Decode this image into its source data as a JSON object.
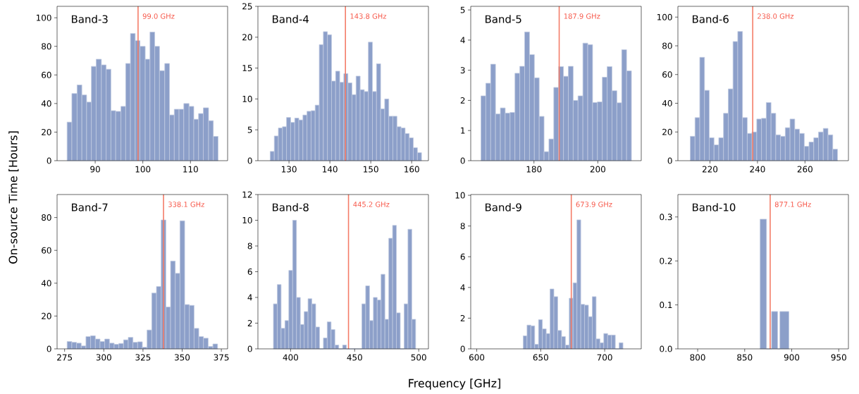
{
  "chart_data": [
    {
      "type": "histogram",
      "title": "Band-3",
      "ylabel": "On-source Time [Hours]",
      "color": "#8c9fc9",
      "bins": [
        84.1,
        85.1,
        86.2,
        87.2,
        88.2,
        89.2,
        90.2,
        91.3,
        92.3,
        93.3,
        94.3,
        95.4,
        96.4,
        97.4,
        98.4,
        99.4,
        100.5,
        101.5,
        102.5,
        103.5,
        104.6,
        105.6,
        106.6,
        107.6,
        108.6,
        109.7,
        110.7,
        111.7,
        112.7,
        113.8,
        114.8,
        115.8
      ],
      "values": [
        27,
        47,
        53,
        46,
        41,
        66,
        71,
        67,
        64,
        35,
        34.5,
        38,
        68,
        89,
        84,
        80,
        71,
        90,
        80,
        63,
        68,
        32,
        36,
        36,
        40,
        38,
        29,
        33,
        37,
        28,
        17
      ],
      "xlim": [
        82.0,
        117.8
      ],
      "ylim": [
        0,
        108
      ],
      "xticks": [
        90,
        100,
        110
      ],
      "yticks": [
        0,
        20,
        40,
        60,
        80,
        100
      ],
      "ref_lines": [
        {
          "axis": "x",
          "value": 99.0,
          "label": "99.0 GHz",
          "color": "#f47c68"
        }
      ]
    },
    {
      "type": "histogram",
      "title": "Band-4",
      "color": "#8c9fc9",
      "bins": [
        125.4,
        126.4,
        127.4,
        128.4,
        129.4,
        130.4,
        131.4,
        132.4,
        133.4,
        134.4,
        135.4,
        136.4,
        137.4,
        138.4,
        139.4,
        140.4,
        141.4,
        142.4,
        143.4,
        144.4,
        145.4,
        146.4,
        147.4,
        148.4,
        149.4,
        150.4,
        151.4,
        152.4,
        153.4,
        154.4,
        155.4,
        156.4,
        157.4,
        158.4,
        159.4,
        160.4,
        161.4,
        162.4
      ],
      "values": [
        1.5,
        4,
        5.3,
        5.5,
        7,
        6.2,
        6.9,
        6.6,
        7.4,
        8,
        8.1,
        9,
        18.8,
        20.9,
        20.4,
        12.9,
        14.5,
        12.7,
        14.1,
        12.6,
        10.7,
        13.7,
        11.5,
        11.2,
        19.2,
        11.2,
        15.7,
        8.4,
        10,
        7.2,
        7.2,
        5.5,
        5.3,
        4.4,
        3.7,
        2.1,
        1.3
      ],
      "xlim": [
        122.4,
        164.1
      ],
      "ylim": [
        0,
        25
      ],
      "xticks": [
        130,
        140,
        150,
        160
      ],
      "yticks": [
        0,
        5,
        10,
        15,
        20,
        25
      ],
      "ref_lines": [
        {
          "axis": "x",
          "value": 143.8,
          "label": "143.8 GHz",
          "color": "#f47c68"
        }
      ]
    },
    {
      "type": "histogram",
      "title": "Band-5",
      "color": "#8c9fc9",
      "bins": [
        163.4,
        164.92,
        166.44,
        167.96,
        169.48,
        171.0,
        172.52,
        174.04,
        175.56,
        177.08,
        178.6,
        180.12,
        181.64,
        183.16,
        184.68,
        186.2,
        187.72,
        189.24,
        190.76,
        192.28,
        193.8,
        195.32,
        196.84,
        198.36,
        199.88,
        201.4,
        202.92,
        204.44,
        205.96,
        207.48,
        209.0,
        210.52
      ],
      "values": [
        2.15,
        2.57,
        3.2,
        1.55,
        1.75,
        1.58,
        1.6,
        2.9,
        3.13,
        4.27,
        3.52,
        2.75,
        1.47,
        0.3,
        0.72,
        2.43,
        3.12,
        2.8,
        3.13,
        2.0,
        2.15,
        3.9,
        3.85,
        1.93,
        1.95,
        2.77,
        3.12,
        2.32,
        1.92,
        3.68,
        2.98
      ],
      "xlim": [
        160.2,
        213.6
      ],
      "ylim": [
        0,
        5.12
      ],
      "xticks": [
        180,
        200
      ],
      "yticks": [
        0,
        1,
        2,
        3,
        4,
        5
      ],
      "ref_lines": [
        {
          "axis": "x",
          "value": 187.9,
          "label": "187.9 GHz",
          "color": "#f47c68"
        }
      ]
    },
    {
      "type": "histogram",
      "title": "Band-6",
      "color": "#8c9fc9",
      "bins": [
        211.7,
        213.7,
        215.7,
        217.7,
        219.7,
        221.7,
        223.7,
        225.7,
        227.7,
        229.7,
        231.7,
        233.7,
        235.7,
        237.7,
        239.7,
        241.7,
        243.7,
        245.7,
        247.7,
        249.7,
        251.7,
        253.7,
        255.7,
        257.7,
        259.7,
        261.7,
        263.7,
        265.7,
        267.7,
        269.7,
        271.7,
        273.7
      ],
      "values": [
        17,
        30,
        72,
        49,
        16,
        11,
        16,
        33,
        50,
        83,
        90,
        30,
        19,
        20,
        29,
        29.5,
        40.5,
        33,
        18,
        17,
        23,
        29,
        22,
        19,
        10,
        13,
        16,
        20,
        22.5,
        18,
        8
      ],
      "xlim": [
        206.5,
        278.3
      ],
      "ylim": [
        0,
        107.5
      ],
      "xticks": [
        220,
        240,
        260
      ],
      "yticks": [
        0,
        20,
        40,
        60,
        80,
        100
      ],
      "ref_lines": [
        {
          "axis": "x",
          "value": 238.0,
          "label": "238.0 GHz",
          "color": "#f47c68"
        }
      ]
    },
    {
      "type": "histogram",
      "title": "Band-7",
      "color": "#8c9fc9",
      "bins": [
        276.6,
        279.6,
        282.6,
        285.6,
        288.6,
        291.6,
        294.6,
        297.6,
        300.6,
        303.6,
        306.6,
        309.6,
        312.6,
        315.6,
        318.6,
        321.6,
        324.6,
        327.6,
        330.6,
        333.6,
        336.6,
        339.6,
        342.6,
        345.6,
        348.6,
        351.6,
        354.6,
        357.6,
        360.6,
        363.6,
        366.6,
        369.6,
        372.6
      ],
      "values": [
        4.5,
        4,
        3.5,
        1.8,
        7.5,
        8,
        6,
        4.5,
        6,
        3.5,
        2.8,
        3.3,
        5.5,
        7,
        4,
        4.3,
        1,
        11.5,
        34,
        38,
        78.5,
        25.5,
        53.5,
        46,
        78,
        27,
        26.5,
        12.5,
        7.5,
        6.5,
        1.5,
        3
      ],
      "xlim": [
        270.2,
        379.0
      ],
      "ylim": [
        0,
        94
      ],
      "xticks": [
        275,
        300,
        325,
        350,
        375
      ],
      "yticks": [
        0,
        20,
        40,
        60,
        80
      ],
      "ref_lines": [
        {
          "axis": "x",
          "value": 338.1,
          "label": "338.1 GHz",
          "color": "#f47c68"
        }
      ]
    },
    {
      "type": "histogram",
      "title": "Band-8",
      "xlabel": "Frequency [GHz]",
      "color": "#8c9fc9",
      "bins": [
        386.6,
        389.6,
        392.6,
        395.6,
        398.6,
        401.6,
        404.6,
        407.6,
        410.6,
        413.6,
        416.6,
        419.6,
        422.6,
        425.6,
        428.6,
        431.6,
        434.6,
        437.6,
        440.6,
        443.6,
        446.6,
        449.6,
        452.6,
        455.6,
        458.6,
        461.6,
        464.6,
        467.6,
        470.6,
        473.6,
        476.6,
        479.6,
        482.6,
        485.6,
        488.6,
        491.6,
        494.6,
        497.6
      ],
      "values": [
        3.5,
        5,
        1.6,
        2.2,
        6.1,
        10,
        4,
        1.9,
        2.9,
        3.9,
        3.5,
        1.7,
        0,
        0.85,
        2.1,
        1.5,
        0.3,
        0,
        0.3,
        0,
        0,
        0,
        0,
        3.5,
        4.9,
        2.2,
        4,
        3.8,
        5.8,
        2.3,
        8.6,
        9.6,
        2.8,
        0,
        3.5,
        9.3,
        2.3
      ],
      "xlim": [
        374.5,
        507.6
      ],
      "ylim": [
        0,
        12
      ],
      "xticks": [
        400,
        450,
        500
      ],
      "yticks": [
        0,
        2,
        4,
        6,
        8,
        10,
        12
      ],
      "ref_lines": [
        {
          "axis": "x",
          "value": 445.2,
          "label": "445.2 GHz",
          "color": "#f47c68"
        }
      ]
    },
    {
      "type": "histogram",
      "title": "Band-9",
      "color": "#8c9fc9",
      "bins": [
        636.3,
        639.3,
        642.3,
        645.3,
        648.3,
        651.3,
        654.3,
        657.3,
        660.3,
        663.3,
        666.3,
        669.3,
        672.3,
        675.3,
        678.3,
        681.3,
        684.3,
        687.3,
        690.3,
        693.3,
        696.3,
        699.3,
        702.3,
        705.3,
        708.3,
        711.3,
        714.3
      ],
      "values": [
        0.85,
        1.55,
        1.5,
        0.3,
        1.9,
        1.3,
        1.0,
        3.9,
        3.4,
        1.2,
        0.8,
        0.25,
        3.3,
        4.3,
        8.4,
        2.9,
        2.85,
        2.1,
        3.4,
        0.65,
        0.4,
        1.0,
        0.9,
        0.9,
        0,
        0.4
      ],
      "xlim": [
        595.3,
        728.6
      ],
      "ylim": [
        0,
        10.05
      ],
      "xticks": [
        600,
        650,
        700
      ],
      "yticks": [
        0,
        2,
        4,
        6,
        8,
        10
      ],
      "ref_lines": [
        {
          "axis": "x",
          "value": 673.9,
          "label": "673.9 GHz",
          "color": "#f47c68"
        }
      ]
    },
    {
      "type": "histogram",
      "title": "Band-10",
      "color": "#8c9fc9",
      "bins": [
        866.4,
        873.2,
        878.6,
        885.0,
        887.4,
        897.0
      ],
      "values": [
        0.295,
        0,
        0.085,
        0,
        0.085
      ],
      "xlim": [
        779.0,
        960.3
      ],
      "ylim": [
        0,
        0.351
      ],
      "xticks": [
        800,
        850,
        900,
        950
      ],
      "yticks": [
        {
          "value": 0,
          "label": "0.0"
        },
        {
          "value": 0.1,
          "label": "0.1"
        },
        {
          "value": 0.2,
          "label": "0.2"
        },
        {
          "value": 0.3,
          "label": "0.3"
        }
      ],
      "ref_lines": [
        {
          "axis": "x",
          "value": 877.1,
          "label": "877.1 GHz",
          "color": "#f47c68"
        }
      ]
    }
  ]
}
